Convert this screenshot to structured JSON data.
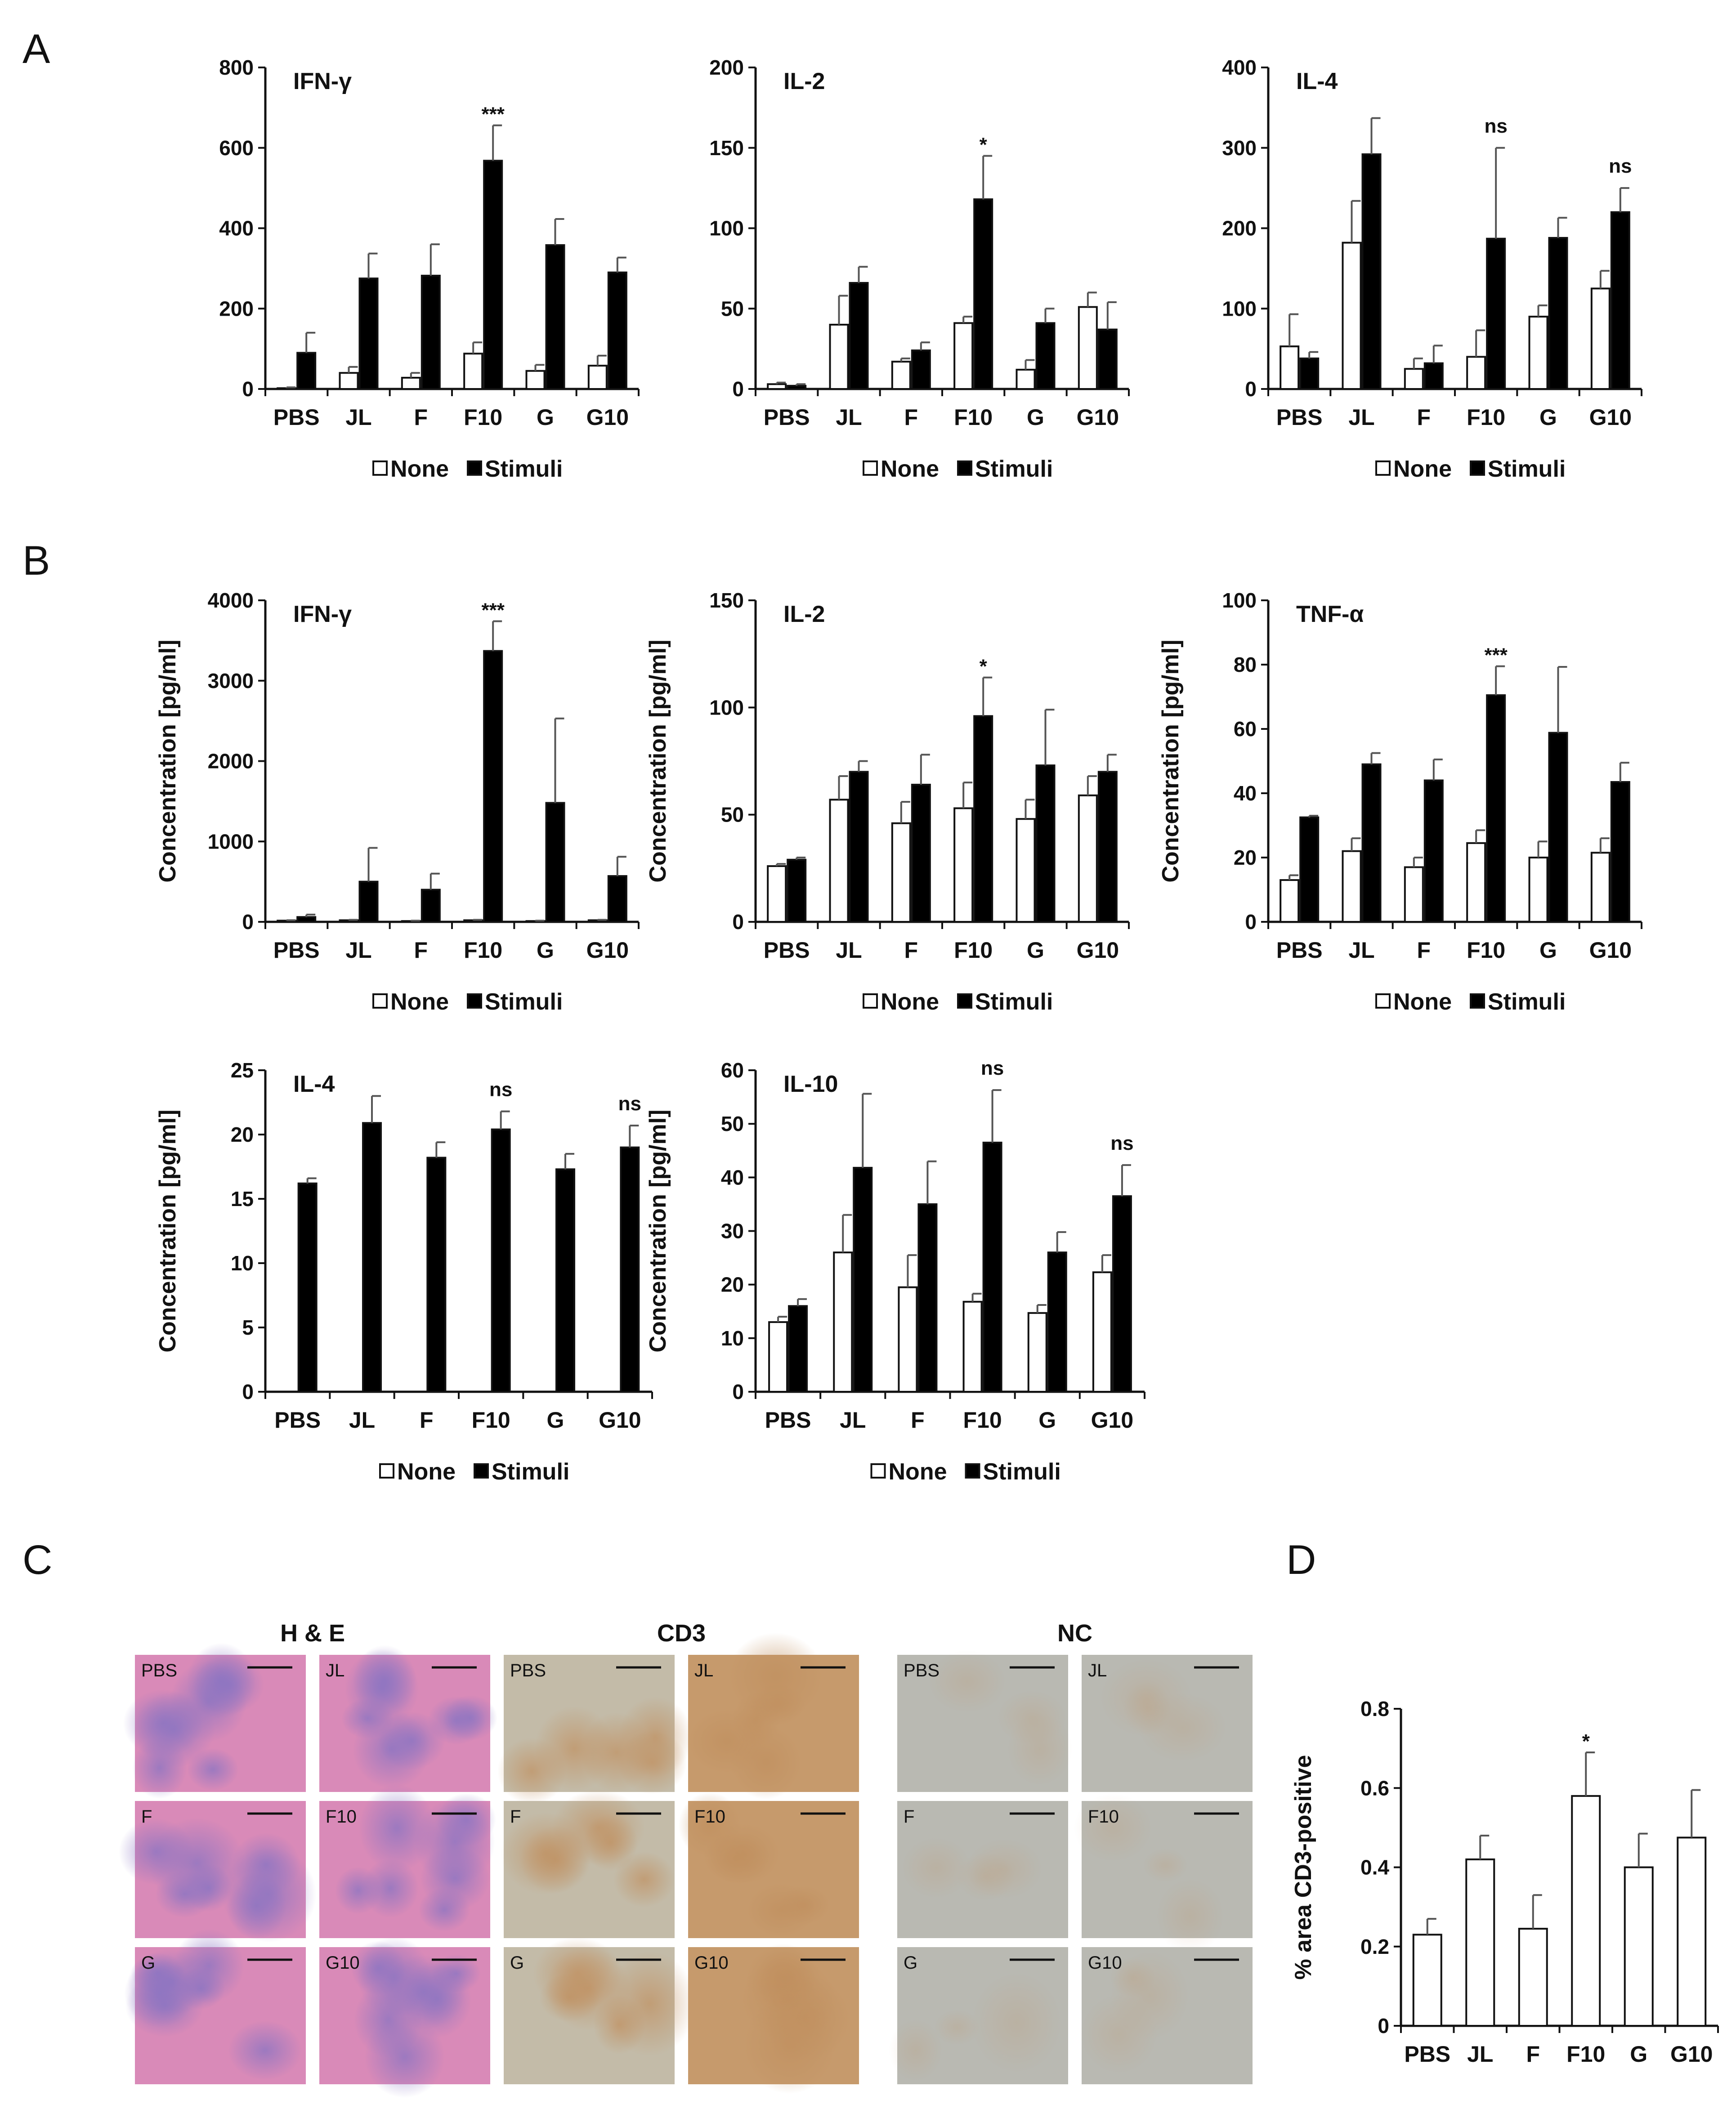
{
  "panel_letters": [
    "A",
    "B",
    "C",
    "D"
  ],
  "legend": {
    "none": "None",
    "stimuli": "Stimuli"
  },
  "colors": {
    "bar_none": "#ffffff",
    "bar_stimuli": "#000000",
    "axis": "#111111",
    "he": "#d98ab8",
    "he_follicle": "#8a74c2",
    "dab_dark": "#c69a6c",
    "dab_light": "#c3bba8",
    "nc": "#b9b9b2"
  },
  "chart_data": [
    {
      "id": "A-IFNg",
      "type": "bar",
      "title": "IFN-γ",
      "ylabel": "",
      "ylim": [
        0,
        800
      ],
      "yticks": [
        0,
        200,
        400,
        600,
        800
      ],
      "categories": [
        "PBS",
        "JL",
        "F",
        "F10",
        "G",
        "G10"
      ],
      "series": [
        {
          "name": "None",
          "values": [
            2,
            40,
            28,
            88,
            45,
            58
          ],
          "errors": [
            2,
            15,
            12,
            28,
            15,
            25
          ]
        },
        {
          "name": "Stimuli",
          "values": [
            90,
            275,
            282,
            568,
            358,
            290
          ],
          "errors": [
            50,
            62,
            78,
            88,
            65,
            37
          ]
        }
      ],
      "annotations": [
        {
          "category": "F10",
          "text": "***"
        }
      ]
    },
    {
      "id": "A-IL2",
      "type": "bar",
      "title": "IL-2",
      "ylabel": "",
      "ylim": [
        0,
        200
      ],
      "yticks": [
        0,
        50,
        100,
        150,
        200
      ],
      "categories": [
        "PBS",
        "JL",
        "F",
        "F10",
        "G",
        "G10"
      ],
      "series": [
        {
          "name": "None",
          "values": [
            3,
            40,
            17,
            41,
            12,
            51
          ],
          "errors": [
            1,
            18,
            2,
            4,
            6,
            9
          ]
        },
        {
          "name": "Stimuli",
          "values": [
            2,
            66,
            24,
            118,
            41,
            37
          ],
          "errors": [
            1,
            10,
            5,
            27,
            9,
            17
          ]
        }
      ],
      "annotations": [
        {
          "category": "F10",
          "text": "*"
        }
      ]
    },
    {
      "id": "A-IL4",
      "type": "bar",
      "title": "IL-4",
      "ylabel": "",
      "ylim": [
        0,
        400
      ],
      "yticks": [
        0,
        100,
        200,
        300,
        400
      ],
      "categories": [
        "PBS",
        "JL",
        "F",
        "F10",
        "G",
        "G10"
      ],
      "series": [
        {
          "name": "None",
          "values": [
            53,
            182,
            25,
            40,
            90,
            125
          ],
          "errors": [
            40,
            52,
            13,
            33,
            14,
            22
          ]
        },
        {
          "name": "Stimuli",
          "values": [
            38,
            292,
            32,
            187,
            188,
            220
          ],
          "errors": [
            8,
            45,
            22,
            113,
            25,
            30
          ]
        }
      ],
      "annotations": [
        {
          "category": "F10",
          "text": "ns"
        },
        {
          "category": "G10",
          "text": "ns"
        }
      ]
    },
    {
      "id": "B-IFNg",
      "type": "bar",
      "title": "IFN-γ",
      "ylabel": "Concentration [pg/ml]",
      "ylim": [
        0,
        4000
      ],
      "yticks": [
        0,
        1000,
        2000,
        3000,
        4000
      ],
      "categories": [
        "PBS",
        "JL",
        "F",
        "F10",
        "G",
        "G10"
      ],
      "series": [
        {
          "name": "None",
          "values": [
            15,
            20,
            10,
            20,
            10,
            20
          ],
          "errors": [
            5,
            5,
            5,
            5,
            5,
            5
          ]
        },
        {
          "name": "Stimuli",
          "values": [
            60,
            500,
            400,
            3370,
            1480,
            570
          ],
          "errors": [
            30,
            420,
            200,
            370,
            1050,
            240
          ]
        }
      ],
      "annotations": [
        {
          "category": "F10",
          "text": "***"
        }
      ]
    },
    {
      "id": "B-IL2",
      "type": "bar",
      "title": "IL-2",
      "ylabel": "Concentration [pg/ml]",
      "ylim": [
        0,
        150
      ],
      "yticks": [
        0,
        50,
        100,
        150
      ],
      "categories": [
        "PBS",
        "JL",
        "F",
        "F10",
        "G",
        "G10"
      ],
      "series": [
        {
          "name": "None",
          "values": [
            26,
            57,
            46,
            53,
            48,
            59
          ],
          "errors": [
            1,
            11,
            10,
            12,
            9,
            9
          ]
        },
        {
          "name": "Stimuli",
          "values": [
            29,
            70,
            64,
            96,
            73,
            70
          ],
          "errors": [
            1,
            5,
            14,
            18,
            26,
            8
          ]
        }
      ],
      "annotations": [
        {
          "category": "F10",
          "text": "*"
        }
      ]
    },
    {
      "id": "B-TNFa",
      "type": "bar",
      "title": "TNF-α",
      "ylabel": "Concentration [pg/ml]",
      "ylim": [
        0,
        100
      ],
      "yticks": [
        0,
        20,
        40,
        60,
        80,
        100
      ],
      "categories": [
        "PBS",
        "JL",
        "F",
        "F10",
        "G",
        "G10"
      ],
      "series": [
        {
          "name": "None",
          "values": [
            13,
            22,
            17,
            24.5,
            20,
            21.5
          ],
          "errors": [
            1.5,
            4,
            3,
            4,
            5,
            4.5
          ]
        },
        {
          "name": "Stimuli",
          "values": [
            32.5,
            49,
            44,
            70.5,
            58.8,
            43.5
          ],
          "errors": [
            0.5,
            3.5,
            6.5,
            9,
            20.5,
            6
          ]
        }
      ],
      "annotations": [
        {
          "category": "F10",
          "text": "***"
        }
      ]
    },
    {
      "id": "B-IL4",
      "type": "bar",
      "title": "IL-4",
      "ylabel": "Concentration [pg/ml]",
      "ylim": [
        0,
        25
      ],
      "yticks": [
        0,
        5,
        10,
        15,
        20,
        25
      ],
      "categories": [
        "PBS",
        "JL",
        "F",
        "F10",
        "G",
        "G10"
      ],
      "series": [
        {
          "name": "None",
          "values": [
            0,
            0,
            0,
            0,
            0,
            0
          ],
          "errors": [
            0,
            0,
            0,
            0,
            0,
            0
          ]
        },
        {
          "name": "Stimuli",
          "values": [
            16.2,
            20.9,
            18.2,
            20.4,
            17.3,
            19.0
          ],
          "errors": [
            0.4,
            2.1,
            1.2,
            1.4,
            1.2,
            1.7
          ]
        }
      ],
      "annotations": [
        {
          "category": "F10",
          "text": "ns"
        },
        {
          "category": "G10",
          "text": "ns"
        }
      ]
    },
    {
      "id": "B-IL10",
      "type": "bar",
      "title": "IL-10",
      "ylabel": "Concentration [pg/ml]",
      "ylim": [
        0,
        60
      ],
      "yticks": [
        0,
        10,
        20,
        30,
        40,
        50,
        60
      ],
      "categories": [
        "PBS",
        "JL",
        "F",
        "F10",
        "G",
        "G10"
      ],
      "series": [
        {
          "name": "None",
          "values": [
            13,
            26,
            19.5,
            16.8,
            14.7,
            22.3
          ],
          "errors": [
            1,
            7,
            6,
            1.5,
            1.5,
            3.2
          ]
        },
        {
          "name": "Stimuli",
          "values": [
            16,
            41.8,
            35,
            46.5,
            26,
            36.5
          ],
          "errors": [
            1.3,
            13.8,
            8,
            9.8,
            3.8,
            5.8
          ]
        }
      ],
      "annotations": [
        {
          "category": "F10",
          "text": "ns"
        },
        {
          "category": "G10",
          "text": "ns"
        }
      ]
    },
    {
      "id": "D-CD3",
      "type": "bar",
      "title": "",
      "ylabel": "% area CD3-positive",
      "ylim": [
        0,
        0.8
      ],
      "yticks": [
        "0",
        "0.2",
        "0.4",
        "0.6",
        "0.8"
      ],
      "categories": [
        "PBS",
        "JL",
        "F",
        "F10",
        "G",
        "G10"
      ],
      "series": [
        {
          "name": "CD3",
          "values": [
            0.23,
            0.42,
            0.245,
            0.58,
            0.4,
            0.475
          ],
          "errors": [
            0.04,
            0.06,
            0.085,
            0.11,
            0.085,
            0.12
          ]
        }
      ],
      "annotations": [
        {
          "category": "F10",
          "text": "*"
        }
      ]
    }
  ],
  "histology": {
    "headings": [
      "H & E",
      "CD3",
      "NC"
    ],
    "stains": [
      "he",
      "cd3",
      "nc"
    ],
    "rows": [
      [
        "PBS",
        "JL"
      ],
      [
        "F",
        "F10"
      ],
      [
        "G",
        "G10"
      ]
    ]
  }
}
